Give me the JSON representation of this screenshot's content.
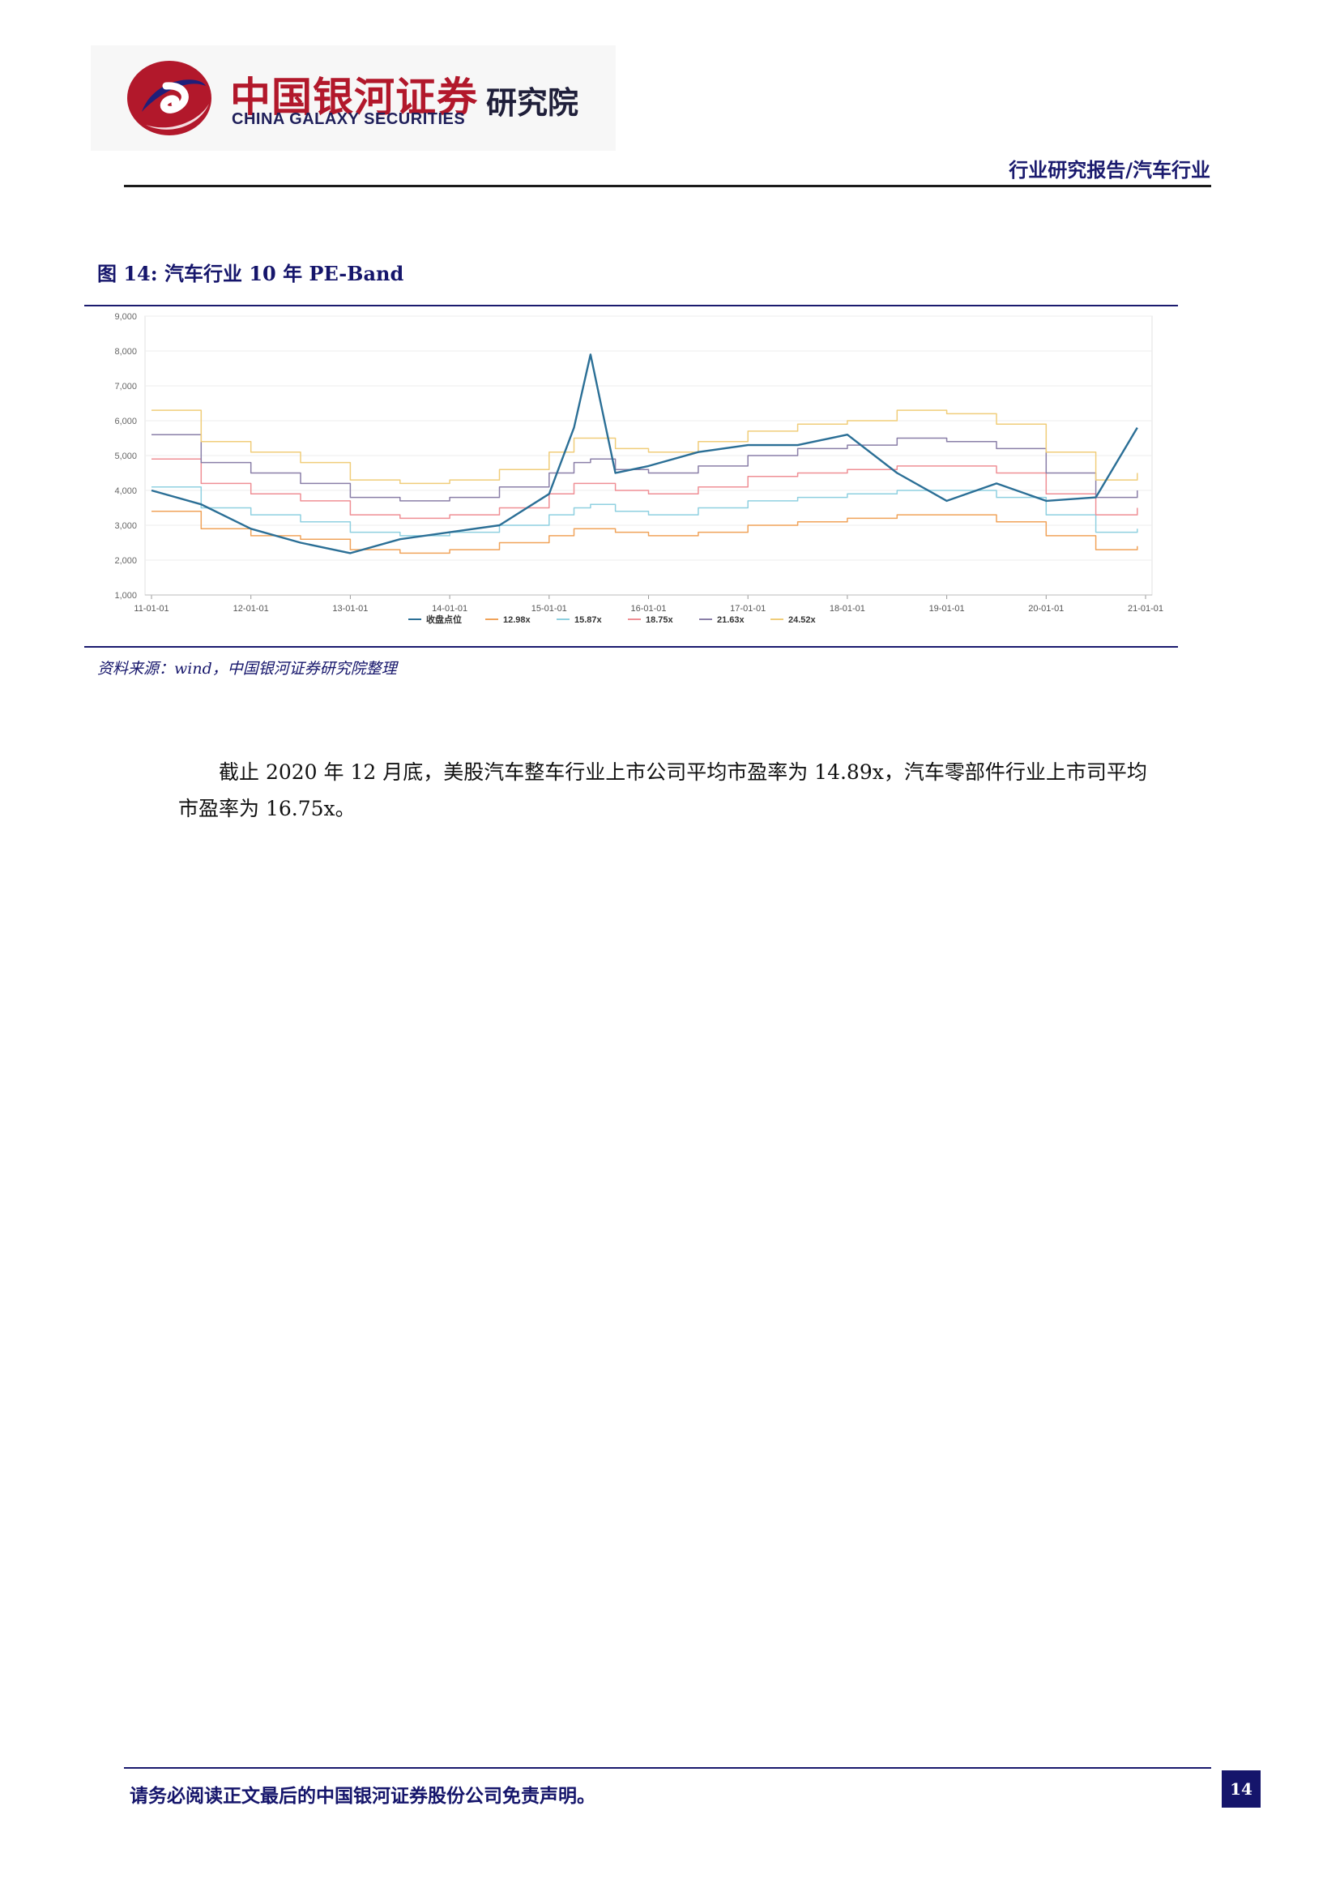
{
  "header": {
    "logo_cn": "中国银河证券",
    "logo_en": "CHINA GALAXY SECURITIES",
    "logo_inst": "研究院",
    "report_tag": "行业研究报告/汽车行业"
  },
  "figure": {
    "title": "图 14:  汽车行业 10 年 PE-Band",
    "source": "资料来源：wind，中国银河证券研究院整理"
  },
  "body": {
    "paragraph": "截止 2020 年 12 月底，美股汽车整车行业上市公司平均市盈率为 14.89x，汽车零部件行业上市司平均市盈率为 16.75x。"
  },
  "footer": {
    "disclaimer": "请务必阅读正文最后的中国银河证券股份公司免责声明。",
    "page_number": "14"
  },
  "colors": {
    "index": "#2b6f96",
    "b1298": "#f0a35a",
    "b1587": "#8fd0e0",
    "b1875": "#ef8f95",
    "b2163": "#8a7fa8",
    "b2452": "#f0cd7a",
    "brand_red": "#b2182b",
    "brand_navy": "#15156b"
  },
  "chart_data": {
    "type": "line",
    "title": "",
    "xlabel": "",
    "ylabel": "",
    "ylim": [
      1000,
      9000
    ],
    "yticks": [
      "1,000",
      "2,000",
      "3,000",
      "4,000",
      "5,000",
      "6,000",
      "7,000",
      "8,000",
      "9,000"
    ],
    "xticks": [
      "11-01-01",
      "12-01-01",
      "13-01-01",
      "14-01-01",
      "15-01-01",
      "16-01-01",
      "17-01-01",
      "18-01-01",
      "19-01-01",
      "20-01-01",
      "21-01-01"
    ],
    "legend_position": "bottom",
    "grid": true,
    "x": [
      "2011-01",
      "2011-07",
      "2012-01",
      "2012-07",
      "2013-01",
      "2013-07",
      "2014-01",
      "2014-07",
      "2015-01",
      "2015-04",
      "2015-06",
      "2015-09",
      "2016-01",
      "2016-07",
      "2017-01",
      "2017-07",
      "2018-01",
      "2018-07",
      "2019-01",
      "2019-07",
      "2020-01",
      "2020-07",
      "2020-12"
    ],
    "series": [
      {
        "name": "收盘点位",
        "key": "index",
        "values": [
          4000,
          3600,
          2900,
          2500,
          2200,
          2600,
          2800,
          3000,
          3900,
          5800,
          7900,
          4500,
          4700,
          5100,
          5300,
          5300,
          5600,
          4500,
          3700,
          4200,
          3700,
          3800,
          5800
        ]
      },
      {
        "name": "12.98x",
        "key": "b1298",
        "values": [
          3400,
          2900,
          2700,
          2600,
          2300,
          2200,
          2300,
          2500,
          2700,
          2900,
          2900,
          2800,
          2700,
          2800,
          3000,
          3100,
          3200,
          3300,
          3300,
          3100,
          2700,
          2300,
          2400
        ]
      },
      {
        "name": "15.87x",
        "key": "b1587",
        "values": [
          4100,
          3500,
          3300,
          3100,
          2800,
          2700,
          2800,
          3000,
          3300,
          3500,
          3600,
          3400,
          3300,
          3500,
          3700,
          3800,
          3900,
          4000,
          4000,
          3800,
          3300,
          2800,
          2900
        ]
      },
      {
        "name": "18.75x",
        "key": "b1875",
        "values": [
          4900,
          4200,
          3900,
          3700,
          3300,
          3200,
          3300,
          3500,
          3900,
          4200,
          4200,
          4000,
          3900,
          4100,
          4400,
          4500,
          4600,
          4700,
          4700,
          4500,
          3900,
          3300,
          3500
        ]
      },
      {
        "name": "21.63x",
        "key": "b2163",
        "values": [
          5600,
          4800,
          4500,
          4200,
          3800,
          3700,
          3800,
          4100,
          4500,
          4800,
          4900,
          4600,
          4500,
          4700,
          5000,
          5200,
          5300,
          5500,
          5400,
          5200,
          4500,
          3800,
          4000
        ]
      },
      {
        "name": "24.52x",
        "key": "b2452",
        "values": [
          6300,
          5400,
          5100,
          4800,
          4300,
          4200,
          4300,
          4600,
          5100,
          5500,
          5500,
          5200,
          5100,
          5400,
          5700,
          5900,
          6000,
          6300,
          6200,
          5900,
          5100,
          4300,
          4500
        ]
      }
    ]
  }
}
